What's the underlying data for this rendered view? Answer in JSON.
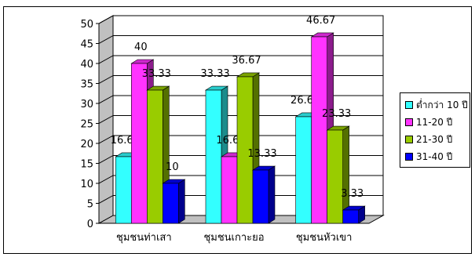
{
  "chart_data": {
    "type": "bar",
    "style": "3d-clustered-column",
    "title": "",
    "xlabel": "",
    "ylabel": "",
    "categories": [
      "ชุมชนท่าเสา",
      "ชุมชนเกาะยอ",
      "ชุมชนหัวเขา"
    ],
    "ylim": [
      0,
      50
    ],
    "yticks": [
      0,
      5,
      10,
      15,
      20,
      25,
      30,
      35,
      40,
      45,
      50
    ],
    "grid": true,
    "legend_position": "right",
    "series": [
      {
        "name": "ต่ำกว่า 10 ปี",
        "color": "#33ffff",
        "values": [
          16.67,
          33.33,
          26.67
        ],
        "labels": [
          "16.67",
          "33.33",
          "26.67"
        ]
      },
      {
        "name": "11-20 ปี",
        "color": "#ff33ff",
        "values": [
          40,
          16.67,
          46.67
        ],
        "labels": [
          "40",
          "16.67",
          "46.67"
        ]
      },
      {
        "name": "21-30 ปี",
        "color": "#99cc00",
        "values": [
          33.33,
          36.67,
          23.33
        ],
        "labels": [
          "33.33",
          "36.67",
          "23.33"
        ]
      },
      {
        "name": "31-40 ปี",
        "color": "#0000ff",
        "values": [
          10,
          13.33,
          3.33
        ],
        "labels": [
          "10",
          "13.33",
          "3.33"
        ]
      }
    ]
  }
}
